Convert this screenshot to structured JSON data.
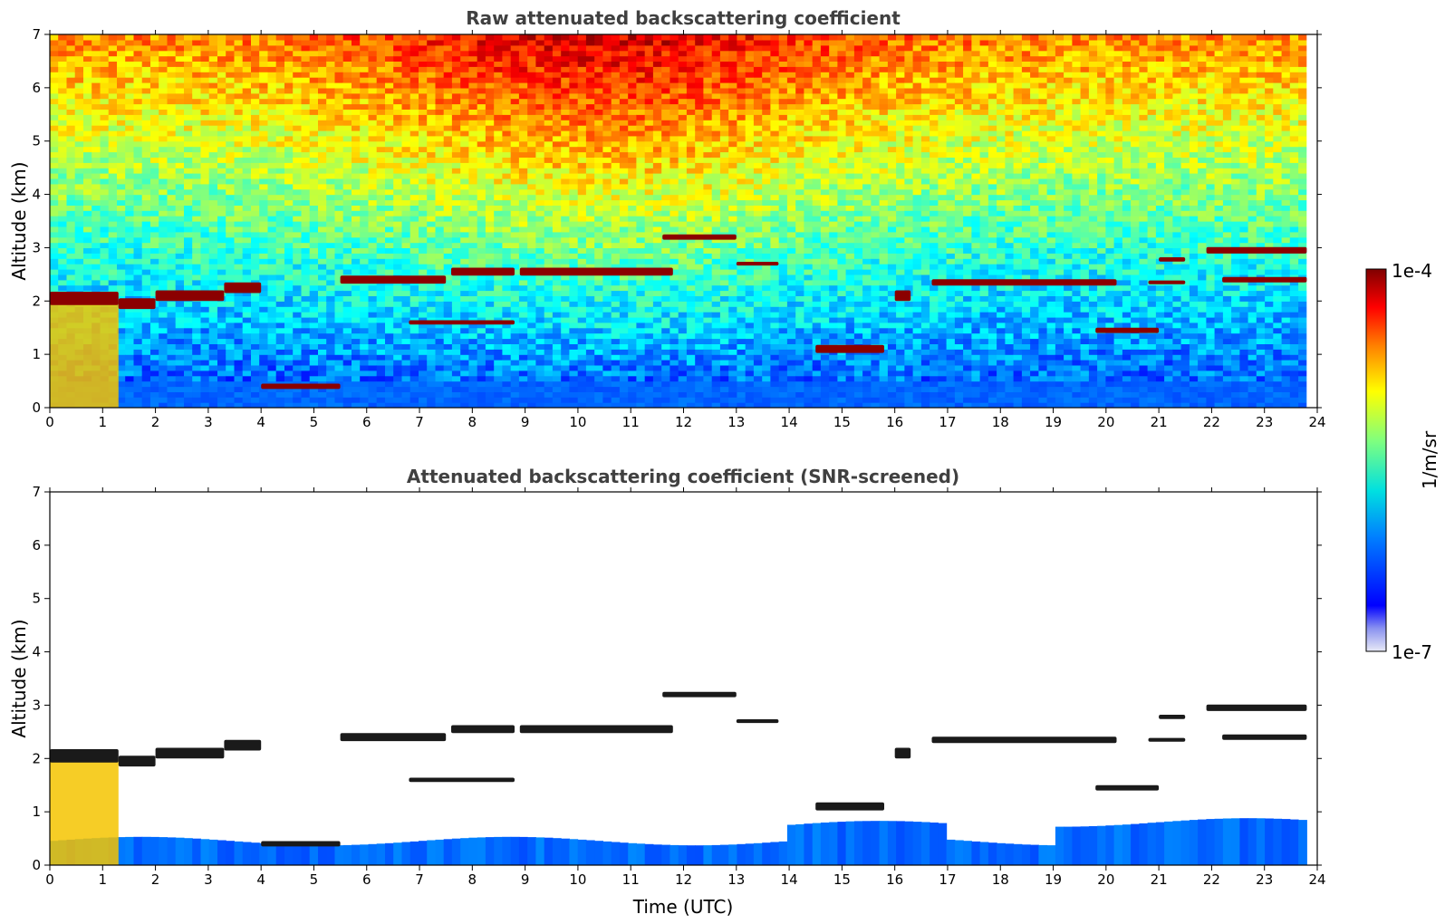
{
  "chart_data": [
    {
      "type": "heatmap",
      "title": "Raw attenuated backscattering coefficient",
      "xlabel": "",
      "ylabel": "Altitude (km)",
      "xlim": [
        0,
        24
      ],
      "ylim": [
        0,
        7
      ],
      "x_ticks": [
        "0",
        "1",
        "2",
        "3",
        "4",
        "5",
        "6",
        "7",
        "8",
        "9",
        "10",
        "11",
        "12",
        "13",
        "14",
        "15",
        "16",
        "17",
        "18",
        "19",
        "20",
        "21",
        "22",
        "23",
        "24"
      ],
      "y_ticks": [
        "0",
        "1",
        "2",
        "3",
        "4",
        "5",
        "6",
        "7"
      ],
      "data_end_time": 23.8,
      "cloud_layers": [
        {
          "t0": 0.0,
          "t1": 1.3,
          "alt": 2.05,
          "thickness": 0.25
        },
        {
          "t0": 1.3,
          "t1": 2.0,
          "alt": 1.95,
          "thickness": 0.2
        },
        {
          "t0": 2.0,
          "t1": 3.3,
          "alt": 2.1,
          "thickness": 0.2
        },
        {
          "t0": 3.3,
          "t1": 4.0,
          "alt": 2.25,
          "thickness": 0.2
        },
        {
          "t0": 4.0,
          "t1": 5.5,
          "alt": 0.4,
          "thickness": 0.1
        },
        {
          "t0": 5.5,
          "t1": 7.5,
          "alt": 2.4,
          "thickness": 0.15
        },
        {
          "t0": 6.8,
          "t1": 8.8,
          "alt": 1.6,
          "thickness": 0.08
        },
        {
          "t0": 7.6,
          "t1": 8.8,
          "alt": 2.55,
          "thickness": 0.15
        },
        {
          "t0": 8.9,
          "t1": 11.8,
          "alt": 2.55,
          "thickness": 0.15
        },
        {
          "t0": 11.6,
          "t1": 13.0,
          "alt": 3.2,
          "thickness": 0.1
        },
        {
          "t0": 13.0,
          "t1": 13.8,
          "alt": 2.7,
          "thickness": 0.07
        },
        {
          "t0": 14.5,
          "t1": 15.8,
          "alt": 1.1,
          "thickness": 0.15
        },
        {
          "t0": 16.0,
          "t1": 16.3,
          "alt": 2.1,
          "thickness": 0.2
        },
        {
          "t0": 16.7,
          "t1": 20.2,
          "alt": 2.35,
          "thickness": 0.12
        },
        {
          "t0": 19.8,
          "t1": 21.0,
          "alt": 1.45,
          "thickness": 0.1
        },
        {
          "t0": 20.8,
          "t1": 21.5,
          "alt": 2.35,
          "thickness": 0.07
        },
        {
          "t0": 21.0,
          "t1": 21.5,
          "alt": 2.78,
          "thickness": 0.08
        },
        {
          "t0": 21.9,
          "t1": 23.8,
          "alt": 2.95,
          "thickness": 0.12
        },
        {
          "t0": 22.2,
          "t1": 23.8,
          "alt": 2.4,
          "thickness": 0.1
        }
      ],
      "aerosol_layer_top_km": 0.45
    },
    {
      "type": "heatmap",
      "title": "Attenuated backscattering coefficient (SNR-screened)",
      "xlabel": "Time (UTC)",
      "ylabel": "Altitude (km)",
      "xlim": [
        0,
        24
      ],
      "ylim": [
        0,
        7
      ],
      "x_ticks": [
        "0",
        "1",
        "2",
        "3",
        "4",
        "5",
        "6",
        "7",
        "8",
        "9",
        "10",
        "11",
        "12",
        "13",
        "14",
        "15",
        "16",
        "17",
        "18",
        "19",
        "20",
        "21",
        "22",
        "23",
        "24"
      ],
      "y_ticks": [
        "0",
        "1",
        "2",
        "3",
        "4",
        "5",
        "6",
        "7"
      ],
      "data_end_time": 23.8,
      "screened_noise": true
    }
  ],
  "colorbar": {
    "label": "1/m/sr",
    "max_label": "1e-4",
    "min_label": "1e-7",
    "colormap": "jet"
  },
  "colors": {
    "title": "#404040",
    "high": "#7f0000",
    "low": "#00008f"
  }
}
